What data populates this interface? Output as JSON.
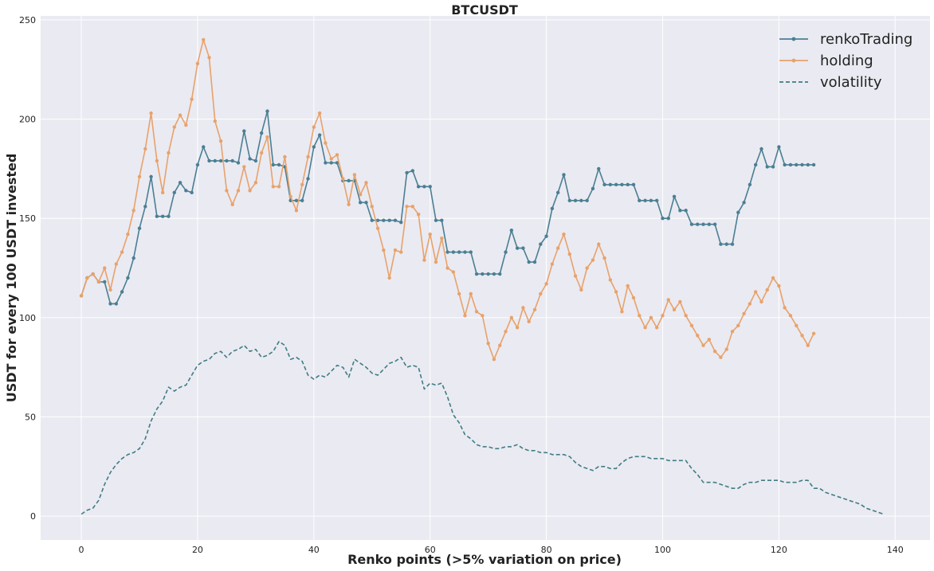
{
  "chart_data": {
    "type": "line",
    "title": "BTCUSDT",
    "xlabel": "Renko points (>5% variation on price)",
    "ylabel": "USDT for every 100 USDT invested",
    "xlim": [
      -7,
      146
    ],
    "ylim": [
      -12,
      252
    ],
    "xticks": [
      0,
      20,
      40,
      60,
      80,
      100,
      120,
      140
    ],
    "yticks": [
      0,
      50,
      100,
      150,
      200,
      250
    ],
    "grid": true,
    "legend_position": "top-right",
    "series": [
      {
        "name": "renkoTrading",
        "color": "#4a7f92",
        "style": "solid-marker",
        "values": [
          111,
          120,
          122,
          118,
          118,
          107,
          107,
          113,
          120,
          130,
          145,
          156,
          171,
          151,
          151,
          151,
          163,
          168,
          164,
          163,
          177,
          186,
          179,
          179,
          179,
          179,
          179,
          178,
          194,
          180,
          179,
          193,
          204,
          177,
          177,
          176,
          159,
          159,
          159,
          170,
          186,
          192,
          178,
          178,
          178,
          169,
          169,
          169,
          158,
          158,
          149,
          149,
          149,
          149,
          149,
          148,
          173,
          174,
          166,
          166,
          166,
          149,
          149,
          133,
          133,
          133,
          133,
          133,
          122,
          122,
          122,
          122,
          122,
          133,
          144,
          135,
          135,
          128,
          128,
          137,
          141,
          155,
          163,
          172,
          159,
          159,
          159,
          159,
          165,
          175,
          167,
          167,
          167,
          167,
          167,
          167,
          159,
          159,
          159,
          159,
          150,
          150,
          161,
          154,
          154,
          147,
          147,
          147,
          147,
          147,
          137,
          137,
          137,
          153,
          158,
          167,
          177,
          185,
          176,
          176,
          186,
          177,
          177,
          177,
          177,
          177,
          177
        ]
      },
      {
        "name": "holding",
        "color": "#e8a26a",
        "style": "solid-marker",
        "values": [
          111,
          120,
          122,
          118,
          125,
          114,
          127,
          133,
          142,
          154,
          171,
          185,
          203,
          179,
          163,
          183,
          196,
          202,
          197,
          210,
          228,
          240,
          231,
          199,
          189,
          164,
          157,
          164,
          176,
          164,
          168,
          183,
          191,
          166,
          166,
          181,
          161,
          154,
          167,
          181,
          196,
          203,
          188,
          180,
          182,
          170,
          157,
          172,
          162,
          168,
          156,
          145,
          134,
          120,
          134,
          133,
          156,
          156,
          152,
          129,
          142,
          128,
          140,
          125,
          123,
          112,
          101,
          112,
          103,
          101,
          87,
          79,
          86,
          93,
          100,
          95,
          105,
          98,
          104,
          112,
          117,
          127,
          135,
          142,
          132,
          121,
          114,
          125,
          129,
          137,
          130,
          119,
          113,
          103,
          116,
          110,
          101,
          95,
          100,
          95,
          101,
          109,
          104,
          108,
          101,
          96,
          91,
          86,
          89,
          83,
          80,
          84,
          93,
          96,
          102,
          107,
          113,
          108,
          114,
          120,
          116,
          105,
          101,
          96,
          91,
          86,
          92
        ]
      },
      {
        "name": "volatility",
        "color": "#3f7d82",
        "style": "dashed",
        "values": [
          1,
          3,
          4,
          8,
          16,
          22,
          26,
          29,
          31,
          32,
          34,
          39,
          48,
          54,
          58,
          65,
          63,
          65,
          66,
          71,
          76,
          78,
          79,
          82,
          83,
          80,
          83,
          84,
          86,
          83,
          84,
          80,
          81,
          83,
          88,
          86,
          79,
          80,
          78,
          71,
          69,
          71,
          70,
          73,
          76,
          75,
          70,
          79,
          77,
          75,
          72,
          71,
          74,
          77,
          78,
          80,
          75,
          76,
          75,
          64,
          67,
          66,
          67,
          60,
          51,
          47,
          41,
          39,
          36,
          35,
          35,
          34,
          34,
          35,
          35,
          36,
          34,
          33,
          33,
          32,
          32,
          31,
          31,
          31,
          30,
          27,
          25,
          24,
          23,
          25,
          25,
          24,
          24,
          27,
          29,
          30,
          30,
          30,
          29,
          29,
          29,
          28,
          28,
          28,
          28,
          24,
          21,
          17,
          17,
          17,
          16,
          15,
          14,
          14,
          16,
          17,
          17,
          18,
          18,
          18,
          18,
          17,
          17,
          17,
          18,
          18,
          14,
          14,
          12,
          11,
          10,
          9,
          8,
          7,
          6,
          4,
          3,
          2,
          1
        ]
      }
    ]
  }
}
